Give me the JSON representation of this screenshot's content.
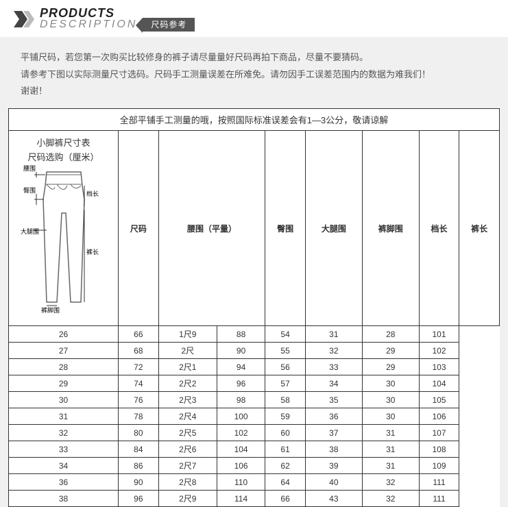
{
  "header": {
    "title_top": "PRODUCTS",
    "title_bottom": "DESCRIPTION",
    "tag": "尺码参考"
  },
  "notes": {
    "line1": "平铺尺码，若您第一次购买比较修身的裤子请尽量量好尺码再拍下商品，尽量不要猜码。",
    "line2": "请参考下图以实际测量尺寸选码。尺码手工测量误差在所难免。请勿因手工误差范围内的数据为难我们！",
    "line3": "谢谢！"
  },
  "table": {
    "banner": "全部平铺手工测量的哦，按照国际标准误差会有1—3公分，敬请谅解",
    "side_title1": "小脚裤尺寸表",
    "side_title2": "尺码选购（厘米）",
    "diagram_labels": {
      "waist": "腰围",
      "hip": "臀围",
      "rise": "档长",
      "thigh": "大腿围",
      "length": "裤长",
      "hem": "裤脚围"
    },
    "columns": [
      "尺码",
      "腰围（平量）",
      "臀围",
      "大腿围",
      "裤脚围",
      "档长",
      "裤长"
    ],
    "rows": [
      [
        "26",
        "66",
        "1尺9",
        "88",
        "54",
        "31",
        "28",
        "101"
      ],
      [
        "27",
        "68",
        "2尺",
        "90",
        "55",
        "32",
        "29",
        "102"
      ],
      [
        "28",
        "72",
        "2尺1",
        "94",
        "56",
        "33",
        "29",
        "103"
      ],
      [
        "29",
        "74",
        "2尺2",
        "96",
        "57",
        "34",
        "30",
        "104"
      ],
      [
        "30",
        "76",
        "2尺3",
        "98",
        "58",
        "35",
        "30",
        "105"
      ],
      [
        "31",
        "78",
        "2尺4",
        "100",
        "59",
        "36",
        "30",
        "106"
      ],
      [
        "32",
        "80",
        "2尺5",
        "102",
        "60",
        "37",
        "31",
        "107"
      ],
      [
        "33",
        "84",
        "2尺6",
        "104",
        "61",
        "38",
        "31",
        "108"
      ],
      [
        "34",
        "86",
        "2尺7",
        "106",
        "62",
        "39",
        "31",
        "109"
      ],
      [
        "36",
        "90",
        "2尺8",
        "110",
        "64",
        "40",
        "32",
        "111"
      ],
      [
        "38",
        "96",
        "2尺9",
        "114",
        "66",
        "43",
        "32",
        "111"
      ]
    ],
    "colors": {
      "border": "#333333",
      "bg": "#ffffff",
      "text": "#333333"
    }
  }
}
